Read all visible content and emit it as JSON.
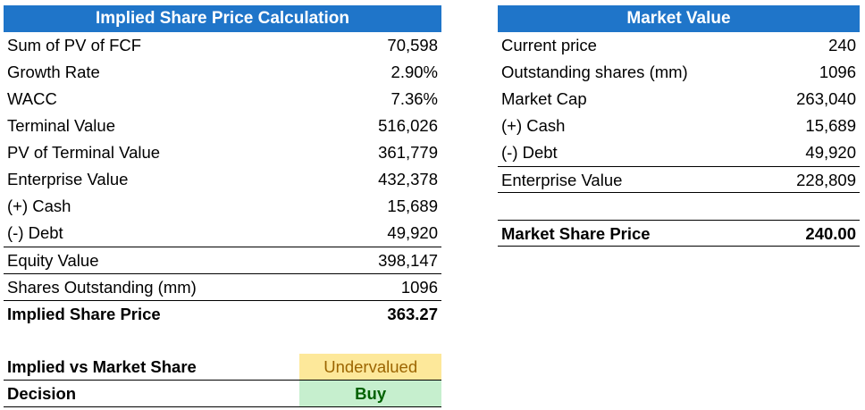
{
  "implied": {
    "title": "Implied Share Price Calculation",
    "rows": [
      {
        "label": "Sum of PV of FCF",
        "value": "70,598"
      },
      {
        "label": "Growth Rate",
        "value": "2.90%"
      },
      {
        "label": "WACC",
        "value": "7.36%"
      },
      {
        "label": "Terminal Value",
        "value": "516,026"
      },
      {
        "label": "PV of Terminal Value",
        "value": "361,779"
      },
      {
        "label": "Enterprise Value",
        "value": "432,378"
      },
      {
        "label": "(+) Cash",
        "value": "15,689"
      },
      {
        "label": "(-) Debt",
        "value": "49,920"
      },
      {
        "label": "Equity Value",
        "value": "398,147"
      },
      {
        "label": "Shares Outstanding (mm)",
        "value": "1096"
      },
      {
        "label": "Implied Share Price",
        "value": "363.27"
      }
    ]
  },
  "market": {
    "title": "Market Value",
    "rows": [
      {
        "label": "Current price",
        "value": "240"
      },
      {
        "label": "Outstanding shares (mm)",
        "value": "1096"
      },
      {
        "label": "Market Cap",
        "value": "263,040"
      },
      {
        "label": "(+) Cash",
        "value": "15,689"
      },
      {
        "label": "(-) Debt",
        "value": "49,920"
      },
      {
        "label": "Enterprise Value",
        "value": "228,809"
      }
    ],
    "share_price": {
      "label": "Market Share Price",
      "value": "240.00"
    }
  },
  "verdict": {
    "comparison_label": "Implied vs Market Share",
    "comparison_value": "Undervalued",
    "decision_label": "Decision",
    "decision_value": "Buy"
  },
  "colors": {
    "header_bg": "#1f75c9",
    "undervalued_bg": "#fde89a",
    "undervalued_text": "#9c6500",
    "buy_bg": "#c6efce",
    "buy_text": "#006100"
  }
}
